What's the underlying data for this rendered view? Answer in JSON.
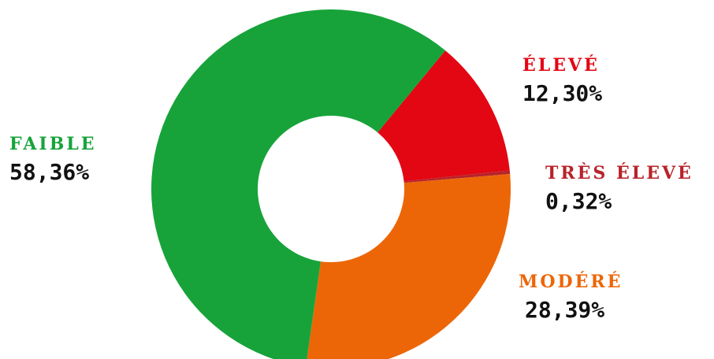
{
  "chart_data": {
    "type": "pie",
    "donut": true,
    "title": "",
    "slices": [
      {
        "name": "ÉLEVÉ",
        "value": 12.3,
        "label": "12,30%",
        "color": "#e30613"
      },
      {
        "name": "TRÈS ÉLEVÉ",
        "value": 0.32,
        "label": "0,32%",
        "color": "#b8232a"
      },
      {
        "name": "MODÉRÉ",
        "value": 28.39,
        "label": "28,39%",
        "color": "#ec6608"
      },
      {
        "name": "FAIBLE",
        "value": 58.36,
        "label": "58,36%",
        "color": "#17a33a"
      }
    ]
  }
}
